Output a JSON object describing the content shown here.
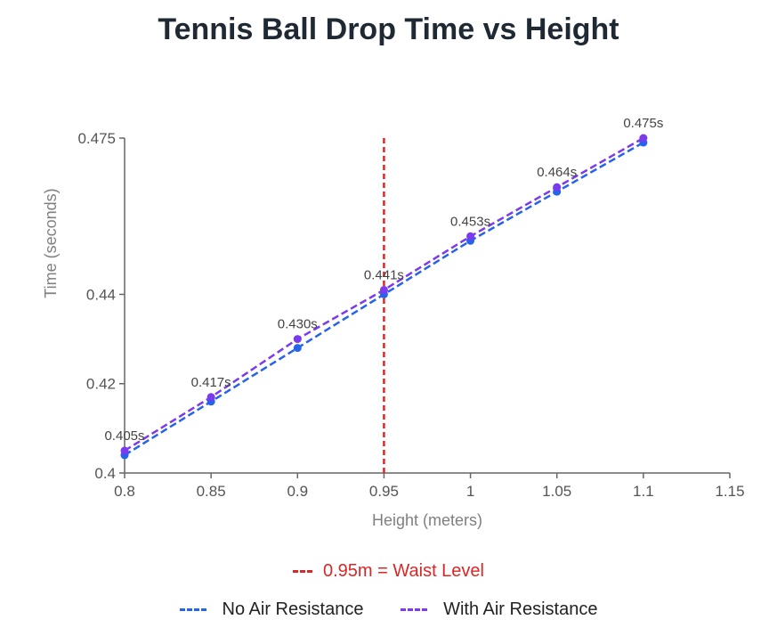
{
  "chart_data": {
    "type": "line",
    "title": "Tennis Ball Drop Time vs Height",
    "xlabel": "Height (meters)",
    "ylabel": "Time (seconds)",
    "xlim": [
      0.8,
      1.15
    ],
    "ylim": [
      0.4,
      0.475
    ],
    "x_ticks": [
      "0.8",
      "0.85",
      "0.9",
      "0.95",
      "1",
      "1.05",
      "1.1",
      "1.15"
    ],
    "y_ticks": [
      "0.4",
      "0.42",
      "0.44",
      "0.475"
    ],
    "x": [
      0.8,
      0.85,
      0.9,
      0.95,
      1.0,
      1.05,
      1.1
    ],
    "series": [
      {
        "name": "No Air Resistance",
        "color": "#2563eb",
        "values": [
          0.404,
          0.416,
          0.428,
          0.44,
          0.452,
          0.463,
          0.474
        ]
      },
      {
        "name": "With Air Resistance",
        "color": "#7c3aed",
        "values": [
          0.405,
          0.417,
          0.43,
          0.441,
          0.453,
          0.464,
          0.475
        ]
      }
    ],
    "data_labels": [
      "0.405s",
      "0.417s",
      "0.430s",
      "0.441s",
      "0.453s",
      "0.464s",
      "0.475s"
    ],
    "reference_line": {
      "x": 0.95,
      "label": "0.95m = Waist Level",
      "color": "#dc2626"
    },
    "grid": false,
    "legend_position": "bottom"
  }
}
